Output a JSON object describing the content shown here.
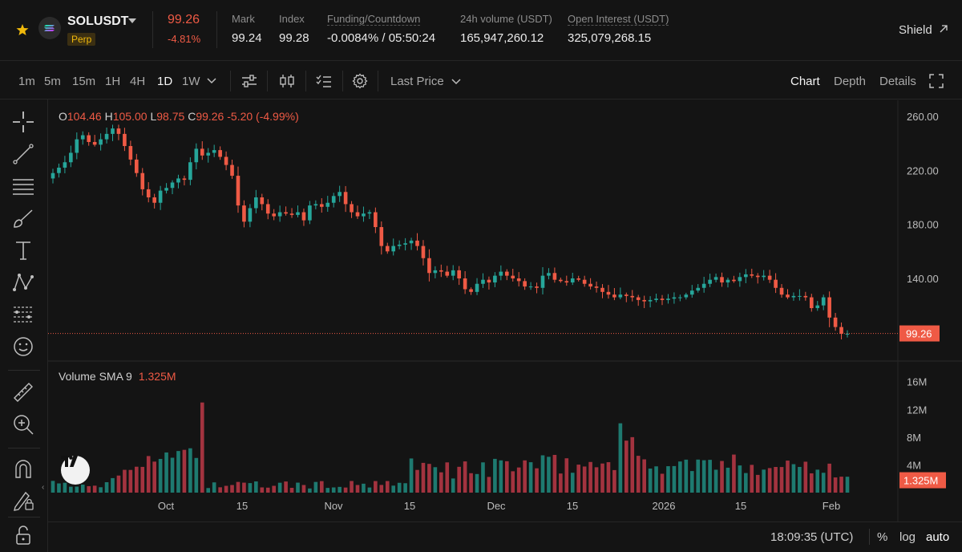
{
  "ticker": {
    "symbol": "SOLUSDT",
    "badge": "Perp",
    "last_price": "99.26",
    "change_pct": "-4.81%",
    "stats": [
      {
        "label": "Mark",
        "value": "99.24"
      },
      {
        "label": "Index",
        "value": "99.28"
      },
      {
        "label": "Funding/Countdown",
        "value": "-0.0084% / 05:50:24"
      },
      {
        "label": "24h volume (USDT)",
        "value": "165,947,260.12"
      },
      {
        "label": "Open Interest (USDT)",
        "value": "325,079,268.15"
      }
    ],
    "shield_label": "Shield",
    "colors": {
      "up": "#26a69a",
      "down": "#ef5a45",
      "accent": "#f0b90b"
    }
  },
  "toolbar": {
    "timeframes": [
      "1m",
      "5m",
      "15m",
      "1H",
      "4H",
      "1D",
      "1W"
    ],
    "active_timeframe": "1D",
    "price_type": "Last Price",
    "views": [
      "Chart",
      "Depth",
      "Details"
    ],
    "active_view": "Chart"
  },
  "ohlc": {
    "open_label": "O",
    "open": "104.46",
    "high_label": "H",
    "high": "105.00",
    "low_label": "L",
    "low": "98.75",
    "close_label": "C",
    "close": "99.26",
    "change": "-5.20 (-4.99%)"
  },
  "volume_label": "Volume SMA 9",
  "volume_value": "1.325M",
  "footer": {
    "time": "18:09:35 (UTC)",
    "percent": "%",
    "log": "log",
    "auto": "auto"
  },
  "chart_data": {
    "type": "candlestick",
    "title": "SOLUSDT Perp 1D",
    "price_axis_ticks": [
      "260.00",
      "220.00",
      "180.00",
      "140.00"
    ],
    "price_axis_values": [
      260,
      220,
      180,
      140
    ],
    "volume_axis_ticks": [
      "16M",
      "12M",
      "8M",
      "4M"
    ],
    "volume_axis_values": [
      16,
      12,
      8,
      4
    ],
    "x_labels": [
      "Oct",
      "15",
      "Nov",
      "15",
      "Dec",
      "15",
      "2026",
      "15",
      "Feb"
    ],
    "last_price_label": "99.26",
    "last_price": 99.26,
    "last_volume_label": "1.325M",
    "last_volume": 1.325,
    "closes": [
      218,
      222,
      226,
      233,
      243,
      246,
      241,
      239,
      243,
      247,
      251,
      247,
      238,
      228,
      218,
      206,
      200,
      196,
      205,
      207,
      211,
      214,
      213,
      226,
      236,
      231,
      233,
      235,
      230,
      224,
      216,
      194,
      182,
      192,
      200,
      195,
      188,
      186,
      189,
      188,
      187,
      189,
      183,
      194,
      195,
      193,
      196,
      201,
      204,
      195,
      189,
      186,
      188,
      189,
      178,
      164,
      160,
      164,
      165,
      166,
      168,
      164,
      155,
      144,
      146,
      145,
      142,
      146,
      140,
      132,
      130,
      136,
      139,
      137,
      142,
      145,
      142,
      140,
      138,
      134,
      134,
      133,
      142,
      144,
      139,
      138,
      137,
      140,
      139,
      136,
      134,
      133,
      130,
      128,
      126,
      128,
      127,
      126,
      124,
      123,
      124,
      125,
      124,
      125,
      126,
      126,
      128,
      131,
      133,
      136,
      139,
      141,
      137,
      139,
      138,
      141,
      143,
      142,
      141,
      142,
      139,
      133,
      128,
      126,
      127,
      127,
      126,
      118,
      120,
      126,
      111,
      104,
      99,
      99
    ]
  }
}
